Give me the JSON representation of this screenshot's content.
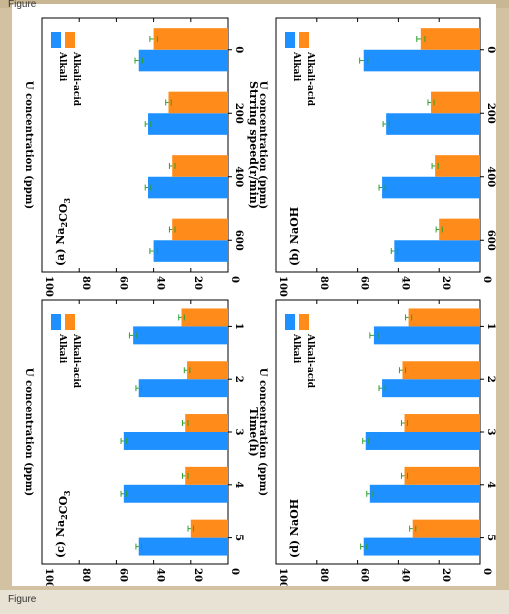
{
  "figure_labels": {
    "top": "Figure",
    "bottom": "Figure"
  },
  "colors": {
    "alkali": "#1e90ff",
    "alkali_acid": "#ff8c1a",
    "error": "#2ca02c"
  },
  "chart_data": [
    {
      "id": "a",
      "type": "bar",
      "panel_label_prefix": "(a) Na",
      "panel_label_sub": "2",
      "panel_label_suffix": "CO",
      "panel_label_sub2": "3",
      "categories": [
        "0",
        "200",
        "400",
        "600"
      ],
      "xlabel": "Strring speed(r/min)",
      "ylabel": "U concentration (ppm)",
      "ylim": [
        0,
        100
      ],
      "yticks": [
        "0",
        "20",
        "40",
        "60",
        "80",
        "100"
      ],
      "series": [
        {
          "name": "Alkali",
          "values": [
            48,
            43,
            43,
            40
          ],
          "errors": [
            2,
            1.5,
            1.5,
            2
          ]
        },
        {
          "name": "Alkali-acid",
          "values": [
            40,
            32,
            30,
            30
          ],
          "errors": [
            2,
            1.5,
            1.5,
            1.5
          ]
        }
      ]
    },
    {
      "id": "b",
      "type": "bar",
      "panel_label_prefix": "(b) NaOH",
      "panel_label_sub": "",
      "panel_label_suffix": "",
      "panel_label_sub2": "",
      "categories": [
        "0",
        "200",
        "400",
        "600"
      ],
      "xlabel": "Strring speed(r/min)",
      "ylabel": "U concentration (ppm)",
      "ylim": [
        0,
        100
      ],
      "yticks": [
        "0",
        "20",
        "40",
        "60",
        "80",
        "100"
      ],
      "series": [
        {
          "name": "Alkali",
          "values": [
            57,
            46,
            48,
            42
          ],
          "errors": [
            2,
            1.5,
            1.5,
            1.5
          ]
        },
        {
          "name": "Alkali-acid",
          "values": [
            29,
            24,
            22,
            20
          ],
          "errors": [
            2,
            1.5,
            1.5,
            1.5
          ]
        }
      ]
    },
    {
      "id": "c",
      "type": "bar",
      "panel_label_prefix": "(c) Na",
      "panel_label_sub": "2",
      "panel_label_suffix": "CO",
      "panel_label_sub2": "3",
      "categories": [
        "1",
        "2",
        "3",
        "4",
        "5"
      ],
      "xlabel": "Time(h)",
      "ylabel": "U concentration (ppm)",
      "ylim": [
        0,
        100
      ],
      "yticks": [
        "0",
        "20",
        "40",
        "60",
        "80",
        "100"
      ],
      "series": [
        {
          "name": "Alkali",
          "values": [
            51,
            48,
            56,
            56,
            48
          ],
          "errors": [
            2,
            1.5,
            1.5,
            1.5,
            1.5
          ]
        },
        {
          "name": "Alkali-acid",
          "values": [
            25,
            22,
            23,
            23,
            20
          ],
          "errors": [
            1.5,
            1.5,
            1.5,
            1.5,
            1.5
          ]
        }
      ]
    },
    {
      "id": "d",
      "type": "bar",
      "panel_label_prefix": "(d) NaOH",
      "panel_label_sub": "",
      "panel_label_suffix": "",
      "panel_label_sub2": "",
      "categories": [
        "1",
        "2",
        "3",
        "4",
        "5"
      ],
      "xlabel": "Time(h)",
      "ylabel": "U concentration (ppm)",
      "ylim": [
        0,
        100
      ],
      "yticks": [
        "0",
        "20",
        "40",
        "60",
        "80",
        "100"
      ],
      "series": [
        {
          "name": "Alkali",
          "values": [
            52,
            48,
            56,
            54,
            57
          ],
          "errors": [
            2,
            1.5,
            1.5,
            1.5,
            1.5
          ]
        },
        {
          "name": "Alkali-acid",
          "values": [
            35,
            38,
            37,
            37,
            33
          ],
          "errors": [
            1.5,
            1.5,
            1.5,
            1.5,
            1.5
          ]
        }
      ]
    }
  ]
}
